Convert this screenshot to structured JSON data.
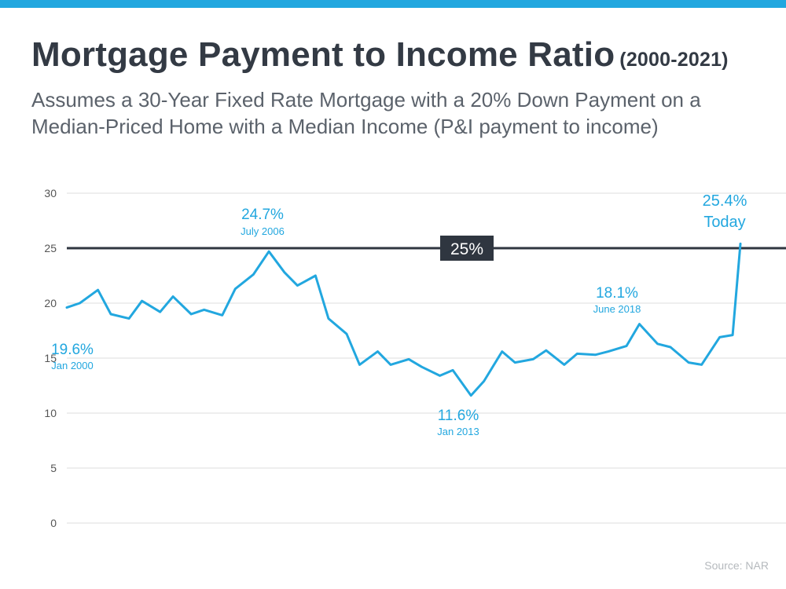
{
  "colors": {
    "accent": "#22a7df",
    "title": "#333a44",
    "subtitle": "#5b626b",
    "reference": "#2f3640",
    "grid": "#dcdcdc",
    "axis_text": "#555555"
  },
  "header": {
    "title": "Mortgage Payment to Income Ratio",
    "title_range": "(2000-2021)",
    "subtitle": "Assumes a 30-Year Fixed Rate Mortgage with a 20% Down Payment on a Median-Priced Home with a Median Income (P&I payment to income)"
  },
  "footer": {
    "source": "Source: NAR"
  },
  "chart_data": {
    "type": "line",
    "title": "Mortgage Payment to Income Ratio",
    "xlabel": "",
    "ylabel": "",
    "ylim": [
      0,
      30
    ],
    "yticks": [
      "0",
      "5",
      "10",
      "15",
      "20",
      "25",
      "30"
    ],
    "xlim": [
      "2000-01",
      "2021-09"
    ],
    "grid": true,
    "legend": "none",
    "series": [
      {
        "x": [
          "2000-01",
          "2000-06",
          "2001-01",
          "2001-06",
          "2002-01",
          "2002-06",
          "2003-01",
          "2003-06",
          "2004-01",
          "2004-06",
          "2005-01",
          "2005-06",
          "2006-01",
          "2006-07",
          "2007-01",
          "2007-06",
          "2008-01",
          "2008-06",
          "2009-01",
          "2009-06",
          "2010-01",
          "2010-06",
          "2011-01",
          "2011-06",
          "2012-01",
          "2012-06",
          "2013-01",
          "2013-06",
          "2014-01",
          "2014-06",
          "2015-01",
          "2015-06",
          "2016-01",
          "2016-06",
          "2017-01",
          "2017-06",
          "2018-01",
          "2018-06",
          "2019-01",
          "2019-06",
          "2020-01",
          "2020-06",
          "2021-01",
          "2021-06",
          "2021-09"
        ],
        "values": [
          19.6,
          20.0,
          21.2,
          19.0,
          18.6,
          20.2,
          19.2,
          20.6,
          19.0,
          19.4,
          18.9,
          21.3,
          22.6,
          24.7,
          22.8,
          21.6,
          22.5,
          18.6,
          17.2,
          14.4,
          15.6,
          14.4,
          14.9,
          14.2,
          13.4,
          13.9,
          11.6,
          12.9,
          15.6,
          14.6,
          14.9,
          15.7,
          14.4,
          15.4,
          15.3,
          15.6,
          16.1,
          18.1,
          16.3,
          16.0,
          14.6,
          14.4,
          16.9,
          17.1,
          25.4
        ]
      }
    ],
    "reference_line": {
      "y": 25,
      "label": "25%"
    },
    "annotations": [
      {
        "label": "19.6%",
        "sublabel": "Jan 2000"
      },
      {
        "label": "24.7%",
        "sublabel": "July 2006"
      },
      {
        "label": "11.6%",
        "sublabel": "Jan 2013"
      },
      {
        "label": "18.1%",
        "sublabel": "June 2018"
      },
      {
        "label": "25.4%",
        "sublabel": "Today"
      }
    ]
  }
}
